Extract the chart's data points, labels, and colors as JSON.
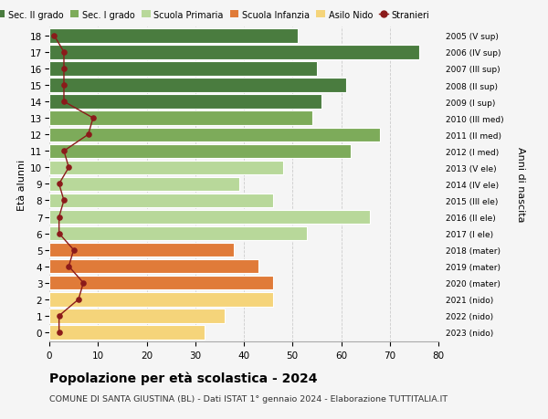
{
  "ages": [
    18,
    17,
    16,
    15,
    14,
    13,
    12,
    11,
    10,
    9,
    8,
    7,
    6,
    5,
    4,
    3,
    2,
    1,
    0
  ],
  "right_labels": [
    "2005 (V sup)",
    "2006 (IV sup)",
    "2007 (III sup)",
    "2008 (II sup)",
    "2009 (I sup)",
    "2010 (III med)",
    "2011 (II med)",
    "2012 (I med)",
    "2013 (V ele)",
    "2014 (IV ele)",
    "2015 (III ele)",
    "2016 (II ele)",
    "2017 (I ele)",
    "2018 (mater)",
    "2019 (mater)",
    "2020 (mater)",
    "2021 (nido)",
    "2022 (nido)",
    "2023 (nido)"
  ],
  "bar_values": [
    51,
    76,
    55,
    61,
    56,
    54,
    68,
    62,
    48,
    39,
    46,
    66,
    53,
    38,
    43,
    46,
    46,
    36,
    32
  ],
  "bar_colors": [
    "#4a7c3f",
    "#4a7c3f",
    "#4a7c3f",
    "#4a7c3f",
    "#4a7c3f",
    "#7dab5a",
    "#7dab5a",
    "#7dab5a",
    "#b8d89a",
    "#b8d89a",
    "#b8d89a",
    "#b8d89a",
    "#b8d89a",
    "#e07b39",
    "#e07b39",
    "#e07b39",
    "#f5d47a",
    "#f5d47a",
    "#f5d47a"
  ],
  "stranieri_values": [
    1,
    3,
    3,
    3,
    3,
    9,
    8,
    3,
    4,
    2,
    3,
    2,
    2,
    5,
    4,
    7,
    6,
    2,
    2
  ],
  "legend_labels": [
    "Sec. II grado",
    "Sec. I grado",
    "Scuola Primaria",
    "Scuola Infanzia",
    "Asilo Nido",
    "Stranieri"
  ],
  "legend_colors": [
    "#4a7c3f",
    "#7dab5a",
    "#b8d89a",
    "#e07b39",
    "#f5d47a",
    "#9b1c1c"
  ],
  "title": "Popolazione per età scolastica - 2024",
  "subtitle": "COMUNE DI SANTA GIUSTINA (BL) - Dati ISTAT 1° gennaio 2024 - Elaborazione TUTTITALIA.IT",
  "ylabel_left": "Età alunni",
  "ylabel_right": "Anni di nascita",
  "xlim": [
    0,
    80
  ],
  "xticks": [
    0,
    10,
    20,
    30,
    40,
    50,
    60,
    70,
    80
  ],
  "background_color": "#f5f5f5",
  "grid_color": "#cccccc",
  "stranieri_color": "#8b1a1a",
  "bar_height": 0.85
}
